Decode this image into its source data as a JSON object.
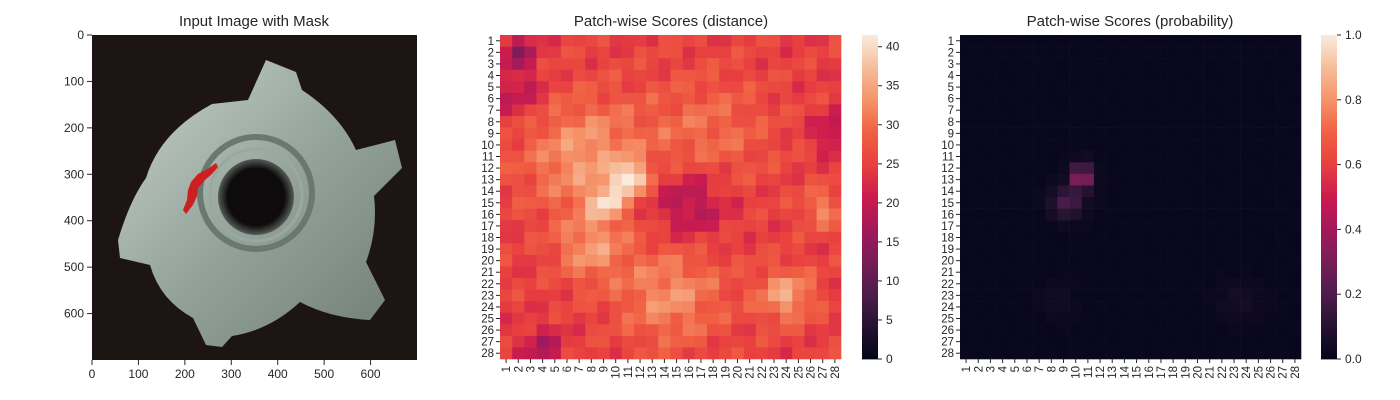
{
  "colors": {
    "background": "#ffffff",
    "text": "#262626",
    "mask": "#cc2020",
    "image_background": "#1c1513",
    "part_metal": "#a5b2ab",
    "part_hole": "#100e0e"
  },
  "colormap": {
    "name": "rocket",
    "stops": [
      [
        0.0,
        "#03051a"
      ],
      [
        0.1,
        "#241230"
      ],
      [
        0.2,
        "#4c1d4b"
      ],
      [
        0.3,
        "#771d57"
      ],
      [
        0.4,
        "#a11a5b"
      ],
      [
        0.5,
        "#cb1b4f"
      ],
      [
        0.6,
        "#e83f3f"
      ],
      [
        0.7,
        "#f06043"
      ],
      [
        0.8,
        "#f5936a"
      ],
      [
        0.9,
        "#f6bc9a"
      ],
      [
        1.0,
        "#faebdd"
      ]
    ]
  },
  "chart_data": [
    {
      "type": "image",
      "title": "Input Image with Mask",
      "xticks": [
        "0",
        "100",
        "200",
        "300",
        "400",
        "500",
        "600"
      ],
      "yticks": [
        "0",
        "100",
        "200",
        "300",
        "400",
        "500",
        "600"
      ],
      "xlim": [
        0,
        700
      ],
      "ylim": [
        700,
        0
      ],
      "image_extent": [
        0,
        700,
        0,
        700
      ],
      "mask_region": {
        "x_range": [
          195,
          270
        ],
        "y_range": [
          275,
          385
        ]
      }
    },
    {
      "type": "heatmap",
      "title": "Patch-wise Scores (distance)",
      "xticks": [
        "1",
        "2",
        "3",
        "4",
        "5",
        "6",
        "7",
        "8",
        "9",
        "10",
        "11",
        "12",
        "13",
        "14",
        "15",
        "16",
        "17",
        "18",
        "19",
        "20",
        "21",
        "22",
        "23",
        "24",
        "25",
        "26",
        "27",
        "28"
      ],
      "yticks": [
        "1",
        "2",
        "3",
        "4",
        "5",
        "6",
        "7",
        "8",
        "9",
        "10",
        "11",
        "12",
        "13",
        "14",
        "15",
        "16",
        "17",
        "18",
        "19",
        "20",
        "21",
        "22",
        "23",
        "24",
        "25",
        "26",
        "27",
        "28"
      ],
      "colorbar": {
        "ticks": [
          "0",
          "5",
          "10",
          "15",
          "20",
          "25",
          "30",
          "35",
          "40"
        ],
        "vmin": 0,
        "vmax": 41.5
      },
      "grid": false,
      "base_level": 25,
      "hotspots": [
        {
          "row": 12.4,
          "col": 10.6,
          "value": 41,
          "sigma": 0.9
        },
        {
          "row": 14.5,
          "col": 8.7,
          "value": 36,
          "sigma": 1.0
        },
        {
          "row": 10.5,
          "col": 7.0,
          "value": 34,
          "sigma": 3.5
        },
        {
          "row": 18.5,
          "col": 7.5,
          "value": 33,
          "sigma": 2.0
        },
        {
          "row": 22.5,
          "col": 14.0,
          "value": 33,
          "sigma": 3.0
        },
        {
          "row": 22.5,
          "col": 23.5,
          "value": 35,
          "sigma": 1.6
        },
        {
          "row": 8.5,
          "col": 17.0,
          "value": 30,
          "sigma": 3.5
        },
        {
          "row": 15.0,
          "col": 26.5,
          "value": 32,
          "sigma": 1.2
        }
      ],
      "coldspots": [
        {
          "row": 1.5,
          "col": 1.5,
          "value": 16,
          "sigma": 1.0
        },
        {
          "row": 14.5,
          "col": 15.5,
          "value": 17,
          "sigma": 2.2
        },
        {
          "row": 8.5,
          "col": 27.5,
          "value": 18,
          "sigma": 1.2
        },
        {
          "row": 27.0,
          "col": 3.5,
          "value": 18,
          "sigma": 1.2
        },
        {
          "row": 5.0,
          "col": 1.5,
          "value": 19,
          "sigma": 1.5
        }
      ]
    },
    {
      "type": "heatmap",
      "title": "Patch-wise Scores (probability)",
      "xticks": [
        "1",
        "2",
        "3",
        "4",
        "5",
        "6",
        "7",
        "8",
        "9",
        "10",
        "11",
        "12",
        "13",
        "14",
        "15",
        "16",
        "17",
        "18",
        "19",
        "20",
        "21",
        "22",
        "23",
        "24",
        "25",
        "26",
        "27",
        "28"
      ],
      "yticks": [
        "1",
        "2",
        "3",
        "4",
        "5",
        "6",
        "7",
        "8",
        "9",
        "10",
        "11",
        "12",
        "13",
        "14",
        "15",
        "16",
        "17",
        "18",
        "19",
        "20",
        "21",
        "22",
        "23",
        "24",
        "25",
        "26",
        "27",
        "28"
      ],
      "colorbar": {
        "ticks": [
          "0.0",
          "0.2",
          "0.4",
          "0.6",
          "0.8",
          "1.0"
        ],
        "vmin": 0,
        "vmax": 1
      },
      "grid": false,
      "base_level": 0.0,
      "hotspots": [
        {
          "row": 12.5,
          "col": 10.0,
          "value": 0.35,
          "sigma": 0.6
        },
        {
          "row": 14.5,
          "col": 8.8,
          "value": 0.18,
          "sigma": 0.9
        },
        {
          "row": 11.5,
          "col": 10.0,
          "value": 0.12,
          "sigma": 0.6
        },
        {
          "row": 23.0,
          "col": 8.0,
          "value": 0.03,
          "sigma": 1.0
        },
        {
          "row": 23.0,
          "col": 23.0,
          "value": 0.04,
          "sigma": 1.2
        }
      ],
      "coldspots": []
    }
  ]
}
